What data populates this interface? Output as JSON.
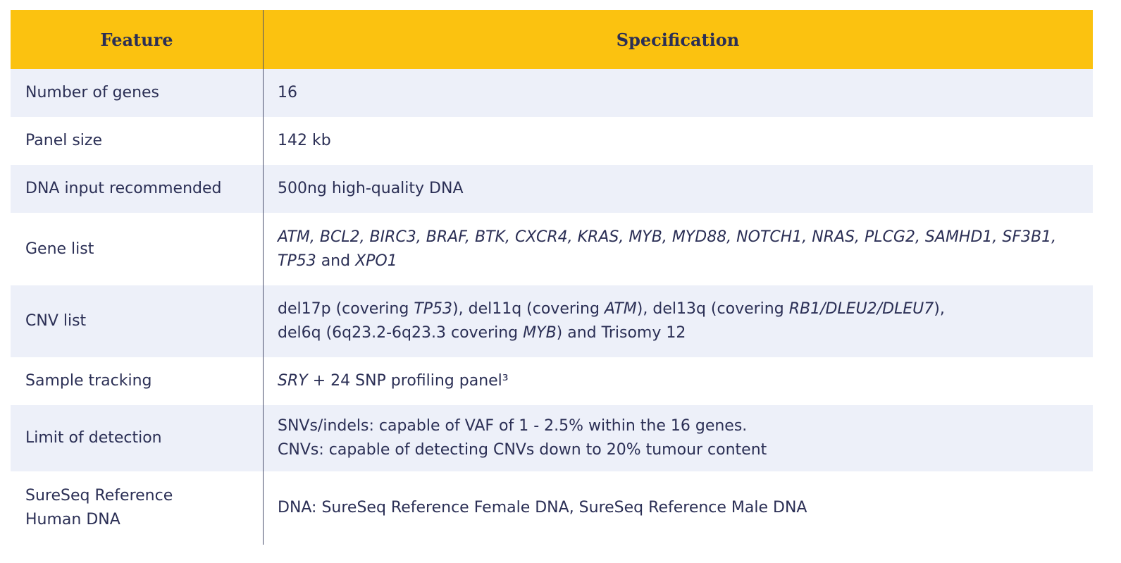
{
  "header": {
    "feature": "Feature",
    "specification": "Specification"
  },
  "rows": [
    {
      "feature": "Number of genes",
      "spec": [
        [
          {
            "t": "16"
          }
        ]
      ]
    },
    {
      "feature": "Panel size",
      "spec": [
        [
          {
            "t": "142 kb"
          }
        ]
      ]
    },
    {
      "feature": "DNA input recommended",
      "spec": [
        [
          {
            "t": "500ng high-quality DNA"
          }
        ]
      ]
    },
    {
      "feature": "Gene list",
      "spec": [
        [
          {
            "t": "ATM, BCL2, BIRC3, BRAF, BTK, CXCR4, KRAS, MYB, MYD88, NOTCH1, NRAS, PLCG2, SAMHD1, SF3B1,",
            "i": true
          }
        ],
        [
          {
            "t": "TP53",
            "i": true
          },
          {
            "t": " and "
          },
          {
            "t": "XPO1",
            "i": true
          }
        ]
      ]
    },
    {
      "feature": "CNV list",
      "spec": [
        [
          {
            "t": "del17p (covering "
          },
          {
            "t": "TP53",
            "i": true
          },
          {
            "t": "), del11q (covering "
          },
          {
            "t": "ATM",
            "i": true
          },
          {
            "t": "), del13q (covering "
          },
          {
            "t": "RB1/DLEU2/DLEU7",
            "i": true
          },
          {
            "t": "),"
          }
        ],
        [
          {
            "t": "del6q (6q23.2-6q23.3 covering "
          },
          {
            "t": "MYB",
            "i": true
          },
          {
            "t": ") and Trisomy 12"
          }
        ]
      ]
    },
    {
      "feature": "Sample tracking",
      "spec": [
        [
          {
            "t": "SRY",
            "i": true
          },
          {
            "t": " + 24 SNP profiling panel³"
          }
        ]
      ]
    },
    {
      "feature": "Limit of detection",
      "spec": [
        [
          {
            "t": "SNVs/indels: capable of VAF of 1 - 2.5% within the 16 genes."
          }
        ],
        [
          {
            "t": "CNVs: capable of detecting CNVs down to 20% tumour content"
          }
        ]
      ]
    },
    {
      "feature": "SureSeq Reference\nHuman DNA",
      "spec": [
        [
          {
            "t": "DNA: SureSeq Reference Female DNA, SureSeq Reference Male DNA"
          }
        ]
      ]
    }
  ],
  "colors": {
    "header_bg": "#fbc210",
    "alt_row_bg": "#edf0f9",
    "text": "#2b2f55"
  }
}
